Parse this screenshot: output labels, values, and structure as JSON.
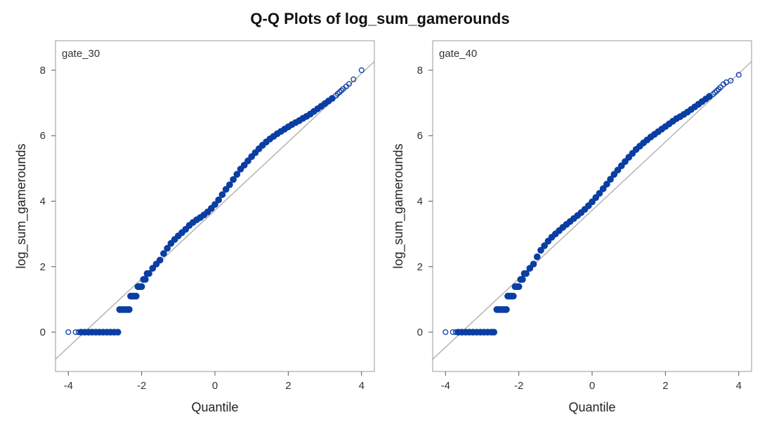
{
  "title": "Q-Q Plots of log_sum_gamerounds",
  "colors": {
    "marker": "#0b3ea3",
    "reference_line": "#b8b8b8",
    "frame": "#9a9a9a"
  },
  "chart_data": [
    {
      "type": "scatter",
      "panel_label": "gate_30",
      "xlabel": "Quantile",
      "ylabel": "log_sum_gamerounds",
      "xlim": [
        -4.35,
        4.35
      ],
      "ylim": [
        -1.2,
        8.9
      ],
      "xticks": [
        -4,
        -2,
        0,
        2,
        4
      ],
      "yticks": [
        0,
        2,
        4,
        6,
        8
      ],
      "reference_line": {
        "slope": 1.045,
        "intercept": 3.72
      },
      "series": [
        {
          "x": [
            -4.0,
            -3.8,
            -3.72,
            -3.65,
            -3.55,
            -3.45,
            -3.35,
            -3.25,
            -3.15,
            -3.05,
            -2.95,
            -2.85,
            -2.75,
            -2.65,
            -2.6,
            -2.55,
            -2.48,
            -2.41,
            -2.34,
            -2.3,
            -2.25,
            -2.2,
            -2.15,
            -2.1,
            -2.05,
            -2.0,
            -1.95,
            -1.9,
            -1.85,
            -1.8,
            -1.7,
            -1.6,
            -1.5,
            -1.4,
            -1.3,
            -1.2,
            -1.1,
            -1.0,
            -0.9,
            -0.8,
            -0.7,
            -0.6,
            -0.5,
            -0.4,
            -0.3,
            -0.2,
            -0.1,
            0.0,
            0.1,
            0.2,
            0.3,
            0.4,
            0.5,
            0.6,
            0.7,
            0.8,
            0.9,
            1.0,
            1.1,
            1.2,
            1.3,
            1.4,
            1.5,
            1.6,
            1.7,
            1.8,
            1.9,
            2.0,
            2.1,
            2.2,
            2.3,
            2.4,
            2.5,
            2.6,
            2.7,
            2.8,
            2.9,
            3.0,
            3.1,
            3.2,
            3.3,
            3.35,
            3.4,
            3.45,
            3.5,
            3.58,
            3.66,
            3.78,
            4.0
          ],
          "y": [
            0.0,
            0.0,
            0.0,
            0.0,
            0.0,
            0.0,
            0.0,
            0.0,
            0.0,
            0.0,
            0.0,
            0.0,
            0.0,
            0.0,
            0.69,
            0.69,
            0.69,
            0.69,
            0.69,
            1.1,
            1.1,
            1.1,
            1.1,
            1.39,
            1.39,
            1.39,
            1.61,
            1.61,
            1.79,
            1.79,
            1.95,
            2.08,
            2.2,
            2.4,
            2.56,
            2.71,
            2.83,
            2.94,
            3.04,
            3.14,
            3.26,
            3.35,
            3.43,
            3.5,
            3.58,
            3.67,
            3.78,
            3.9,
            4.04,
            4.2,
            4.36,
            4.5,
            4.66,
            4.82,
            4.98,
            5.1,
            5.23,
            5.36,
            5.48,
            5.6,
            5.71,
            5.81,
            5.9,
            5.98,
            6.06,
            6.13,
            6.2,
            6.27,
            6.34,
            6.4,
            6.46,
            6.53,
            6.59,
            6.66,
            6.74,
            6.82,
            6.9,
            6.98,
            7.06,
            7.14,
            7.22,
            7.28,
            7.33,
            7.38,
            7.43,
            7.5,
            7.58,
            7.72,
            8.0
          ]
        }
      ]
    },
    {
      "type": "scatter",
      "panel_label": "gate_40",
      "xlabel": "Quantile",
      "ylabel": "log_sum_gamerounds",
      "xlim": [
        -4.35,
        4.35
      ],
      "ylim": [
        -1.2,
        8.9
      ],
      "xticks": [
        -4,
        -2,
        0,
        2,
        4
      ],
      "yticks": [
        0,
        2,
        4,
        6,
        8
      ],
      "reference_line": {
        "slope": 1.045,
        "intercept": 3.72
      },
      "series": [
        {
          "x": [
            -4.0,
            -3.8,
            -3.72,
            -3.65,
            -3.55,
            -3.45,
            -3.35,
            -3.25,
            -3.15,
            -3.05,
            -2.95,
            -2.85,
            -2.75,
            -2.68,
            -2.6,
            -2.55,
            -2.48,
            -2.41,
            -2.34,
            -2.3,
            -2.25,
            -2.2,
            -2.15,
            -2.1,
            -2.05,
            -2.0,
            -1.95,
            -1.9,
            -1.85,
            -1.8,
            -1.7,
            -1.6,
            -1.5,
            -1.4,
            -1.3,
            -1.2,
            -1.1,
            -1.0,
            -0.9,
            -0.8,
            -0.7,
            -0.6,
            -0.5,
            -0.4,
            -0.3,
            -0.2,
            -0.1,
            0.0,
            0.1,
            0.2,
            0.3,
            0.4,
            0.5,
            0.6,
            0.7,
            0.8,
            0.9,
            1.0,
            1.1,
            1.2,
            1.3,
            1.4,
            1.5,
            1.6,
            1.7,
            1.8,
            1.9,
            2.0,
            2.1,
            2.2,
            2.3,
            2.4,
            2.5,
            2.6,
            2.7,
            2.8,
            2.9,
            3.0,
            3.1,
            3.2,
            3.3,
            3.35,
            3.4,
            3.45,
            3.5,
            3.58,
            3.66,
            3.78,
            4.0
          ],
          "y": [
            0.0,
            0.0,
            0.0,
            0.0,
            0.0,
            0.0,
            0.0,
            0.0,
            0.0,
            0.0,
            0.0,
            0.0,
            0.0,
            0.0,
            0.69,
            0.69,
            0.69,
            0.69,
            0.69,
            1.1,
            1.1,
            1.1,
            1.1,
            1.39,
            1.39,
            1.39,
            1.61,
            1.61,
            1.79,
            1.79,
            1.95,
            2.08,
            2.3,
            2.5,
            2.64,
            2.78,
            2.9,
            3.0,
            3.1,
            3.2,
            3.29,
            3.38,
            3.47,
            3.56,
            3.65,
            3.75,
            3.86,
            3.98,
            4.11,
            4.24,
            4.38,
            4.52,
            4.67,
            4.82,
            4.95,
            5.08,
            5.21,
            5.34,
            5.46,
            5.58,
            5.68,
            5.78,
            5.87,
            5.96,
            6.04,
            6.12,
            6.2,
            6.28,
            6.36,
            6.44,
            6.52,
            6.58,
            6.65,
            6.72,
            6.8,
            6.88,
            6.96,
            7.04,
            7.12,
            7.2,
            7.27,
            7.32,
            7.37,
            7.42,
            7.48,
            7.57,
            7.63,
            7.68,
            7.86
          ]
        }
      ]
    }
  ]
}
